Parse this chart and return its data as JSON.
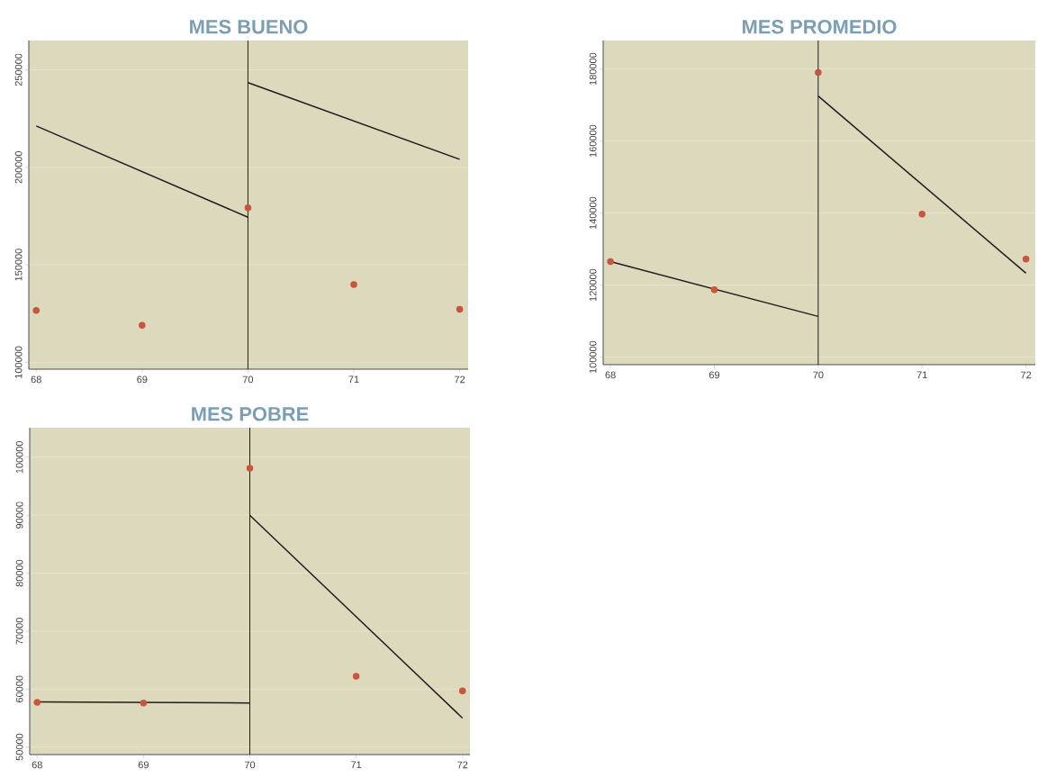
{
  "chart_data": [
    {
      "type": "scatter",
      "title": "MES BUENO",
      "xlim": [
        67.93,
        72.08
      ],
      "ylim": [
        96500,
        265000
      ],
      "xticks": [
        68,
        69,
        70,
        71,
        72
      ],
      "yticks": [
        100000,
        150000,
        200000,
        250000
      ],
      "grid": "y",
      "x": [
        68,
        69,
        70,
        71,
        72
      ],
      "series": [
        {
          "type": "scatter",
          "marker": "circle",
          "color": "#c8553d",
          "values": [
            126600,
            119000,
            179300,
            139900,
            127200
          ]
        },
        {
          "type": "line",
          "marker": "none",
          "color": "#1e1e1e",
          "x": [
            68,
            70
          ],
          "values": [
            221200,
            174400
          ]
        },
        {
          "type": "line",
          "marker": "none",
          "color": "#1e1e1e",
          "x": [
            70,
            72
          ],
          "values": [
            243400,
            204100
          ]
        }
      ],
      "ref_lines": [
        {
          "axis": "x",
          "value": 70,
          "color": "#1e1e1e"
        }
      ]
    },
    {
      "type": "scatter",
      "title": "MES PROMEDIO",
      "xlim": [
        67.93,
        72.09
      ],
      "ylim": [
        97900,
        187900
      ],
      "xticks": [
        68,
        69,
        70,
        71,
        72
      ],
      "yticks": [
        100000,
        120000,
        140000,
        160000,
        180000
      ],
      "grid": "y",
      "x": [
        68,
        69,
        70,
        71,
        72
      ],
      "series": [
        {
          "type": "scatter",
          "marker": "circle",
          "color": "#c8553d",
          "values": [
            126500,
            118700,
            179000,
            139700,
            127200
          ]
        },
        {
          "type": "line",
          "marker": "none",
          "color": "#1e1e1e",
          "x": [
            68,
            70
          ],
          "values": [
            126500,
            111300
          ]
        },
        {
          "type": "line",
          "marker": "none",
          "color": "#1e1e1e",
          "x": [
            70,
            72
          ],
          "values": [
            172500,
            123300
          ]
        }
      ],
      "ref_lines": [
        {
          "axis": "x",
          "value": 70,
          "color": "#1e1e1e"
        }
      ]
    },
    {
      "type": "scatter",
      "title": "MES POBRE",
      "xlim": [
        67.93,
        72.07
      ],
      "ylim": [
        48700,
        105100
      ],
      "xticks": [
        68,
        69,
        70,
        71,
        72
      ],
      "yticks": [
        50000,
        60000,
        70000,
        80000,
        90000,
        100000
      ],
      "grid": "y",
      "x": [
        68,
        69,
        70,
        71,
        72
      ],
      "series": [
        {
          "type": "scatter",
          "marker": "circle",
          "color": "#c8553d",
          "values": [
            57700,
            57600,
            98100,
            62200,
            59700
          ]
        },
        {
          "type": "line",
          "marker": "none",
          "color": "#1e1e1e",
          "x": [
            68,
            70
          ],
          "values": [
            57800,
            57600
          ]
        },
        {
          "type": "line",
          "marker": "none",
          "color": "#1e1e1e",
          "x": [
            70,
            72
          ],
          "values": [
            90000,
            55000
          ]
        }
      ],
      "ref_lines": [
        {
          "axis": "x",
          "value": 70,
          "color": "#1e1e1e"
        }
      ]
    }
  ]
}
